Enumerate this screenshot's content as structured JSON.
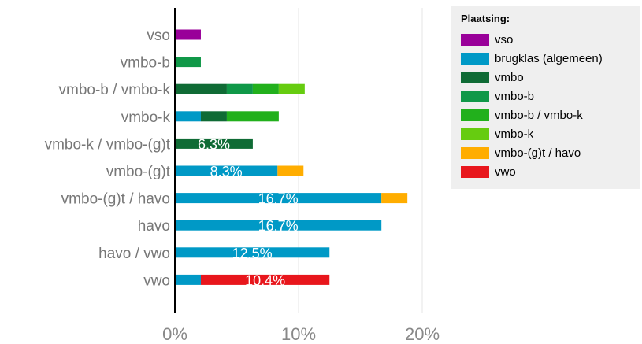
{
  "chart_data": {
    "type": "bar",
    "orientation": "horizontal",
    "stacked": true,
    "categories": [
      "vso",
      "vmbo-b",
      "vmbo-b / vmbo-k",
      "vmbo-k",
      "vmbo-k / vmbo-(g)t",
      "vmbo-(g)t",
      "vmbo-(g)t / havo",
      "havo",
      "havo / vwo",
      "vwo"
    ],
    "series": [
      {
        "name": "vso",
        "color": "#990099",
        "values": [
          2.1,
          0,
          0,
          0,
          0,
          0,
          0,
          0,
          0,
          0
        ]
      },
      {
        "name": "brugklas (algemeen)",
        "color": "#0099c6",
        "values": [
          0,
          0,
          0,
          2.1,
          0,
          8.3,
          16.7,
          16.7,
          12.5,
          2.1
        ]
      },
      {
        "name": "vmbo",
        "color": "#0f6b35",
        "values": [
          0,
          0,
          4.2,
          2.1,
          6.3,
          0,
          0,
          0,
          0,
          0
        ]
      },
      {
        "name": "vmbo-b",
        "color": "#109848",
        "values": [
          0,
          2.1,
          2.1,
          0,
          0,
          0,
          0,
          0,
          0,
          0
        ]
      },
      {
        "name": "vmbo-b / vmbo-k",
        "color": "#22b01c",
        "values": [
          0,
          0,
          2.1,
          4.2,
          0,
          0,
          0,
          0,
          0,
          0
        ]
      },
      {
        "name": "vmbo-k",
        "color": "#66cc10",
        "values": [
          0,
          0,
          2.1,
          0,
          0,
          0,
          0,
          0,
          0,
          0
        ]
      },
      {
        "name": "vmbo-(g)t / havo",
        "color": "#ffad00",
        "values": [
          0,
          0,
          0,
          0,
          0,
          2.1,
          2.1,
          0,
          0,
          0
        ]
      },
      {
        "name": "vwo",
        "color": "#e8161c",
        "values": [
          0,
          0,
          0,
          0,
          0,
          0,
          0,
          0,
          0,
          10.4
        ]
      }
    ],
    "data_labels": [
      {
        "category": "vmbo-k / vmbo-(g)t",
        "series": "vmbo",
        "text": "6.3%"
      },
      {
        "category": "vmbo-(g)t",
        "series": "brugklas (algemeen)",
        "text": "8.3%"
      },
      {
        "category": "vmbo-(g)t / havo",
        "series": "brugklas (algemeen)",
        "text": "16.7%"
      },
      {
        "category": "havo",
        "series": "brugklas (algemeen)",
        "text": "16.7%"
      },
      {
        "category": "havo / vwo",
        "series": "brugklas (algemeen)",
        "text": "12.5%"
      },
      {
        "category": "vwo",
        "series": "vwo",
        "text": "10.4%"
      }
    ],
    "xlim": [
      0,
      20
    ],
    "xticks": [
      0,
      10,
      20
    ],
    "xtick_labels": [
      "0%",
      "10%",
      "20%"
    ],
    "grid": true,
    "legend": {
      "title": "Plaatsing:",
      "position": "right"
    }
  }
}
